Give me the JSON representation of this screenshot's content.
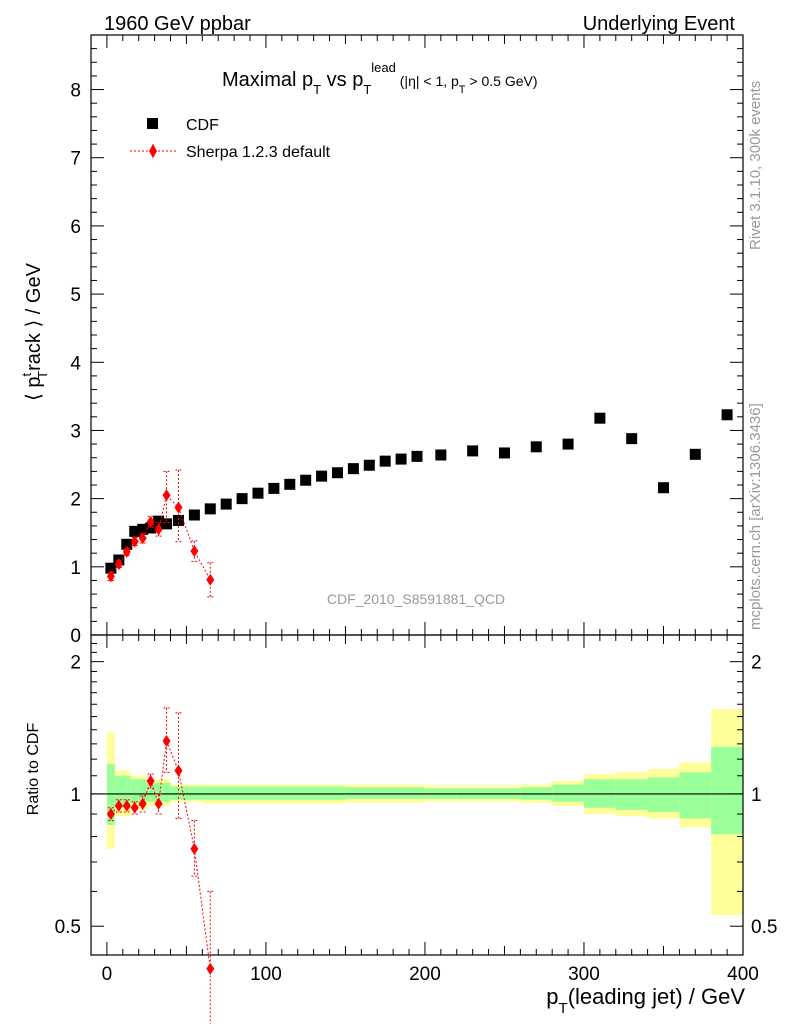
{
  "header": {
    "left": "1960 GeV ppbar",
    "right": "Underlying Event"
  },
  "side": {
    "rivet": "Rivet 3.1.10,  300k events",
    "mcplots": "mcplots.cern.ch [arXiv:1306.3436]"
  },
  "title": {
    "main": "Maximal p",
    "main_sub": "T",
    "vs": " vs p",
    "vs_sub": "T",
    "vs_sup": "lead",
    "cut": " (|η| < 1, p",
    "cut_sub": "T",
    "cut_end": " > 0.5 GeV)"
  },
  "watermark": "CDF_2010_S8591881_QCD",
  "axes": {
    "ylabel_main": "⟨ p",
    "ylabel_sup": "t",
    "ylabel_sub": "T",
    "ylabel_rest": "rack ⟩ / GeV",
    "ylabel_ratio": "Ratio to CDF",
    "xlabel": "p",
    "xlabel_sub": "T",
    "xlabel_rest": "(leading jet) / GeV"
  },
  "legend": {
    "data_label": "CDF",
    "mc_label": "Sherpa 1.2.3 default"
  },
  "colors": {
    "data": "#000000",
    "mc": "#ff0000",
    "band_inner": "#99ff99",
    "band_outer": "#ffff99"
  },
  "chart_data": [
    {
      "type": "scatter",
      "panel": "main",
      "xlim": [
        -10,
        400
      ],
      "ylim": [
        0,
        8.8
      ],
      "x_ticks": [
        0,
        100,
        200,
        300,
        400
      ],
      "y_ticks": [
        0,
        1,
        2,
        3,
        4,
        5,
        6,
        7,
        8
      ],
      "legend_position": "top-left",
      "series": [
        {
          "name": "CDF",
          "marker": "square",
          "x": [
            2.5,
            7.5,
            12.5,
            17.5,
            22.5,
            27.5,
            32.5,
            37.5,
            45,
            55,
            65,
            75,
            85,
            95,
            105,
            115,
            125,
            135,
            145,
            155,
            165,
            175,
            185,
            195,
            210,
            230,
            250,
            270,
            290,
            310,
            330,
            350,
            370,
            390
          ],
          "y": [
            0.98,
            1.1,
            1.33,
            1.52,
            1.55,
            1.57,
            1.67,
            1.63,
            1.68,
            1.76,
            1.85,
            1.92,
            2.0,
            2.08,
            2.15,
            2.21,
            2.27,
            2.33,
            2.38,
            2.44,
            2.49,
            2.55,
            2.58,
            2.62,
            2.64,
            2.7,
            2.67,
            2.76,
            2.8,
            3.18,
            2.88,
            2.16,
            2.65,
            3.23
          ]
        },
        {
          "name": "Sherpa 1.2.3 default",
          "marker": "diamond",
          "x": [
            2.5,
            7.5,
            12.5,
            17.5,
            22.5,
            27.5,
            32.5,
            37.5,
            45,
            55,
            65
          ],
          "y": [
            0.86,
            1.04,
            1.22,
            1.37,
            1.42,
            1.66,
            1.55,
            2.05,
            1.87,
            1.23,
            0.81
          ],
          "err_low": [
            0.06,
            0.05,
            0.05,
            0.06,
            0.07,
            0.08,
            0.1,
            0.4,
            0.5,
            0.15,
            0.25
          ],
          "err_high": [
            0.06,
            0.05,
            0.05,
            0.06,
            0.07,
            0.08,
            0.1,
            0.35,
            0.55,
            0.15,
            0.25
          ]
        }
      ]
    },
    {
      "type": "scatter",
      "panel": "ratio",
      "xlim": [
        -10,
        400
      ],
      "ylim": [
        0.43,
        2.3
      ],
      "x_ticks": [
        0,
        100,
        200,
        300,
        400
      ],
      "y_ticks": [
        0.5,
        1,
        2
      ],
      "bins": [
        {
          "lo": 0,
          "hi": 5,
          "inner": [
            0.85,
            1.17
          ],
          "outer": [
            0.75,
            1.38
          ]
        },
        {
          "lo": 5,
          "hi": 15,
          "inner": [
            0.93,
            1.1
          ],
          "outer": [
            0.89,
            1.13
          ]
        },
        {
          "lo": 15,
          "hi": 25,
          "inner": [
            0.95,
            1.08
          ],
          "outer": [
            0.92,
            1.1
          ]
        },
        {
          "lo": 25,
          "hi": 40,
          "inner": [
            0.96,
            1.06
          ],
          "outer": [
            0.94,
            1.08
          ]
        },
        {
          "lo": 40,
          "hi": 60,
          "inner": [
            0.97,
            1.04
          ],
          "outer": [
            0.96,
            1.05
          ]
        },
        {
          "lo": 60,
          "hi": 100,
          "inner": [
            0.97,
            1.04
          ],
          "outer": [
            0.95,
            1.05
          ]
        },
        {
          "lo": 100,
          "hi": 150,
          "inner": [
            0.97,
            1.04
          ],
          "outer": [
            0.95,
            1.05
          ]
        },
        {
          "lo": 150,
          "hi": 200,
          "inner": [
            0.975,
            1.035
          ],
          "outer": [
            0.955,
            1.05
          ]
        },
        {
          "lo": 200,
          "hi": 220,
          "inner": [
            0.975,
            1.03
          ],
          "outer": [
            0.96,
            1.045
          ]
        },
        {
          "lo": 220,
          "hi": 240,
          "inner": [
            0.975,
            1.03
          ],
          "outer": [
            0.96,
            1.045
          ]
        },
        {
          "lo": 240,
          "hi": 260,
          "inner": [
            0.975,
            1.03
          ],
          "outer": [
            0.96,
            1.045
          ]
        },
        {
          "lo": 260,
          "hi": 280,
          "inner": [
            0.97,
            1.035
          ],
          "outer": [
            0.955,
            1.05
          ]
        },
        {
          "lo": 280,
          "hi": 300,
          "inner": [
            0.96,
            1.05
          ],
          "outer": [
            0.94,
            1.07
          ]
        },
        {
          "lo": 300,
          "hi": 320,
          "inner": [
            0.93,
            1.08
          ],
          "outer": [
            0.9,
            1.11
          ]
        },
        {
          "lo": 320,
          "hi": 340,
          "inner": [
            0.92,
            1.08
          ],
          "outer": [
            0.89,
            1.12
          ]
        },
        {
          "lo": 340,
          "hi": 360,
          "inner": [
            0.91,
            1.09
          ],
          "outer": [
            0.88,
            1.14
          ]
        },
        {
          "lo": 360,
          "hi": 380,
          "inner": [
            0.88,
            1.12
          ],
          "outer": [
            0.84,
            1.18
          ]
        },
        {
          "lo": 380,
          "hi": 400,
          "inner": [
            0.81,
            1.28
          ],
          "outer": [
            0.53,
            1.56
          ]
        }
      ],
      "series": [
        {
          "name": "Sherpa 1.2.3 default",
          "marker": "diamond",
          "x": [
            2.5,
            7.5,
            12.5,
            17.5,
            22.5,
            27.5,
            32.5,
            37.5,
            45,
            55,
            65
          ],
          "y": [
            0.9,
            0.94,
            0.94,
            0.93,
            0.95,
            1.07,
            0.95,
            1.32,
            1.13,
            0.75,
            0.4
          ],
          "err_low": [
            0.03,
            0.03,
            0.03,
            0.03,
            0.04,
            0.04,
            0.05,
            0.2,
            0.25,
            0.1,
            0.13
          ],
          "err_high": [
            0.03,
            0.03,
            0.03,
            0.03,
            0.04,
            0.04,
            0.05,
            0.25,
            0.4,
            0.12,
            0.2
          ]
        }
      ]
    }
  ]
}
